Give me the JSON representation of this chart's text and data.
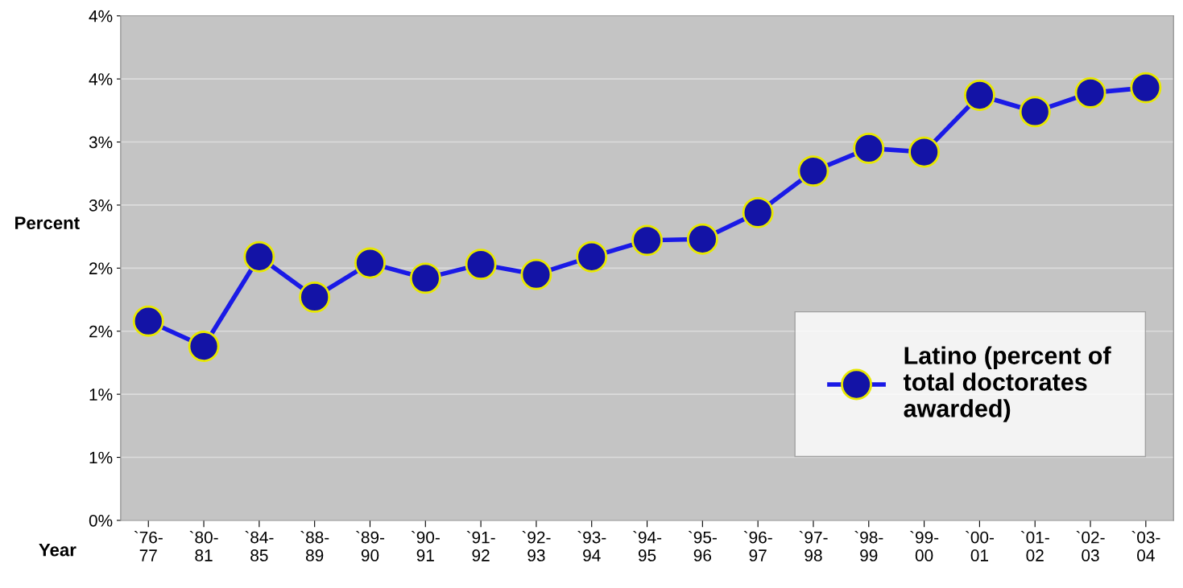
{
  "chart_data": {
    "type": "line",
    "xlabel": "Year",
    "ylabel": "Percent",
    "categories": [
      "`76-\n77",
      "`80-\n81",
      "`84-\n85",
      "`88-\n89",
      "`89-\n90",
      "`90-\n91",
      "`91-\n92",
      "`92-\n93",
      "`93-\n94",
      "`94-\n95",
      "`95-\n96",
      "`96-\n97",
      "`97-\n98",
      "`98-\n99",
      "`99-\n00",
      "`00-\n01",
      "`01-\n02",
      "`02-\n03",
      "`03-\n04"
    ],
    "series": [
      {
        "name": "Latino (percent of\ntotal doctorates\nawarded)",
        "color": "#1a1ae6",
        "values": [
          1.58,
          1.38,
          2.09,
          1.77,
          2.04,
          1.92,
          2.03,
          1.95,
          2.09,
          2.22,
          2.23,
          2.44,
          2.77,
          2.95,
          2.92,
          3.37,
          3.24,
          3.39,
          3.43
        ]
      }
    ],
    "ylim": [
      0,
      4
    ],
    "yticks": [
      {
        "value": 0,
        "label": "0%"
      },
      {
        "value": 0.5,
        "label": "1%"
      },
      {
        "value": 1,
        "label": "1%"
      },
      {
        "value": 1.5,
        "label": "2%"
      },
      {
        "value": 2,
        "label": "2%"
      },
      {
        "value": 2.5,
        "label": "3%"
      },
      {
        "value": 3,
        "label": "3%"
      },
      {
        "value": 3.5,
        "label": "4%"
      },
      {
        "value": 4,
        "label": "4%"
      }
    ],
    "grid": "y",
    "legend": "right",
    "marker": "circle",
    "line_style": "solid"
  }
}
